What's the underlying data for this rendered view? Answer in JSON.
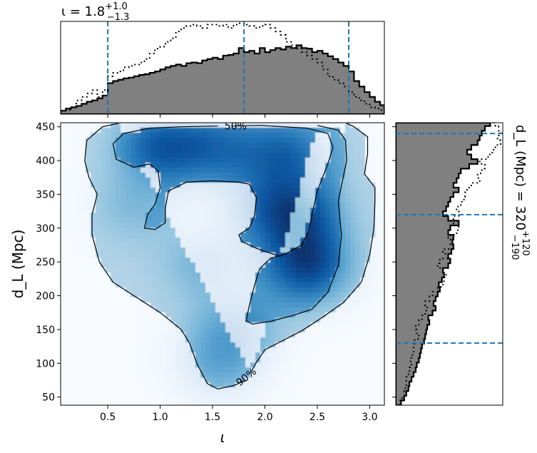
{
  "chart_data": [
    {
      "type": "heatmap",
      "panel": "joint",
      "xlabel": "ι",
      "ylabel": "d_L (Mpc)",
      "xlim": [
        0.05,
        3.14
      ],
      "ylim": [
        38,
        456
      ],
      "x_ticks": [
        "0.5",
        "1.0",
        "1.5",
        "2.0",
        "2.5",
        "3.0"
      ],
      "x_tick_values": [
        0.5,
        1.0,
        1.5,
        2.0,
        2.5,
        3.0
      ],
      "y_ticks": [
        "50",
        "100",
        "150",
        "200",
        "250",
        "300",
        "350",
        "400",
        "450"
      ],
      "y_tick_values": [
        50,
        100,
        150,
        200,
        250,
        300,
        350,
        400,
        450
      ],
      "colormap": "Blues",
      "density_peaks": [
        {
          "x": 2.4,
          "y": 245,
          "w": 1.0
        },
        {
          "x": 2.35,
          "y": 320,
          "w": 0.75
        },
        {
          "x": 1.0,
          "y": 420,
          "w": 0.8
        },
        {
          "x": 1.55,
          "y": 420,
          "w": 0.6
        },
        {
          "x": 2.2,
          "y": 410,
          "w": 0.7
        },
        {
          "x": 1.4,
          "y": 245,
          "w": 0.35
        },
        {
          "x": 1.7,
          "y": 150,
          "w": 0.45
        },
        {
          "x": 1.55,
          "y": 95,
          "w": 0.4
        },
        {
          "x": 2.0,
          "y": 330,
          "w": 0.45
        },
        {
          "x": 0.75,
          "y": 330,
          "w": 0.3
        }
      ],
      "contours": [
        {
          "label": "50%",
          "label_at": [
            1.72,
            451
          ],
          "points": [
            [
              1.68,
              451
            ],
            [
              1.95,
              452
            ],
            [
              2.4,
              448
            ],
            [
              2.6,
              440
            ],
            [
              2.65,
              420
            ],
            [
              2.6,
              395
            ],
            [
              2.55,
              375
            ],
            [
              2.5,
              355
            ],
            [
              2.45,
              320
            ],
            [
              2.42,
              295
            ],
            [
              2.35,
              275
            ],
            [
              2.2,
              262
            ],
            [
              2.05,
              255
            ],
            [
              1.95,
              240
            ],
            [
              1.9,
              215
            ],
            [
              1.85,
              185
            ],
            [
              1.82,
              163
            ],
            [
              1.88,
              158
            ],
            [
              2.05,
              162
            ],
            [
              2.25,
              170
            ],
            [
              2.45,
              180
            ],
            [
              2.6,
              205
            ],
            [
              2.7,
              245
            ],
            [
              2.73,
              290
            ],
            [
              2.7,
              340
            ],
            [
              2.78,
              400
            ],
            [
              2.77,
              430
            ],
            [
              2.7,
              445
            ],
            [
              2.5,
              452
            ]
          ]
        },
        {
          "label": "50%",
          "points": [
            [
              1.55,
              451
            ],
            [
              1.2,
              450
            ],
            [
              0.9,
              448
            ],
            [
              0.65,
              440
            ],
            [
              0.55,
              425
            ],
            [
              0.58,
              402
            ],
            [
              0.75,
              390
            ],
            [
              0.9,
              395
            ],
            [
              0.98,
              385
            ],
            [
              1.0,
              360
            ],
            [
              0.95,
              335
            ],
            [
              0.88,
              320
            ],
            [
              0.85,
              300
            ],
            [
              0.95,
              298
            ],
            [
              1.05,
              308
            ],
            [
              1.05,
              330
            ],
            [
              1.08,
              355
            ],
            [
              1.25,
              368
            ],
            [
              1.5,
              370
            ],
            [
              1.75,
              368
            ],
            [
              1.85,
              365
            ],
            [
              1.92,
              345
            ],
            [
              1.9,
              318
            ],
            [
              1.85,
              300
            ],
            [
              1.75,
              290
            ],
            [
              1.78,
              280
            ],
            [
              1.92,
              270
            ],
            [
              2.05,
              263
            ],
            [
              2.15,
              258
            ]
          ]
        },
        {
          "label": "90%",
          "label_at": [
            1.82,
            80
          ],
          "points": [
            [
              1.82,
              75
            ],
            [
              1.7,
              67
            ],
            [
              1.55,
              62
            ],
            [
              1.45,
              70
            ],
            [
              1.35,
              100
            ],
            [
              1.28,
              130
            ],
            [
              1.2,
              150
            ],
            [
              1.0,
              175
            ],
            [
              0.75,
              200
            ],
            [
              0.55,
              220
            ],
            [
              0.42,
              250
            ],
            [
              0.35,
              290
            ],
            [
              0.35,
              320
            ],
            [
              0.4,
              350
            ],
            [
              0.32,
              375
            ],
            [
              0.28,
              400
            ],
            [
              0.3,
              430
            ],
            [
              0.45,
              450
            ],
            [
              0.6,
              455
            ]
          ]
        },
        {
          "label": "90%",
          "points": [
            [
              2.78,
              455
            ],
            [
              2.85,
              450
            ],
            [
              2.98,
              435
            ],
            [
              2.98,
              410
            ],
            [
              2.95,
              380
            ],
            [
              3.05,
              360
            ],
            [
              3.05,
              340
            ],
            [
              3.04,
              300
            ],
            [
              3.0,
              260
            ],
            [
              2.92,
              220
            ],
            [
              2.75,
              190
            ],
            [
              2.55,
              168
            ],
            [
              2.35,
              148
            ],
            [
              2.15,
              132
            ],
            [
              2.0,
              120
            ],
            [
              1.92,
              102
            ],
            [
              1.86,
              85
            ]
          ]
        }
      ]
    },
    {
      "type": "bar",
      "panel": "top-marginal",
      "title": "ι = 1.8",
      "title_sup": "+1.0",
      "title_sub": "−1.3",
      "xlim": [
        0.05,
        3.14
      ],
      "bin_edges": [
        0.05,
        0.1,
        0.15,
        0.2,
        0.25,
        0.3,
        0.35,
        0.4,
        0.45,
        0.5,
        0.55,
        0.6,
        0.65,
        0.7,
        0.75,
        0.8,
        0.85,
        0.9,
        0.95,
        1.0,
        1.05,
        1.1,
        1.15,
        1.2,
        1.25,
        1.3,
        1.35,
        1.4,
        1.45,
        1.5,
        1.55,
        1.6,
        1.65,
        1.7,
        1.75,
        1.8,
        1.85,
        1.9,
        1.95,
        2.0,
        2.05,
        2.1,
        2.15,
        2.2,
        2.25,
        2.3,
        2.35,
        2.4,
        2.45,
        2.5,
        2.55,
        2.6,
        2.65,
        2.7,
        2.75,
        2.8,
        2.85,
        2.9,
        2.95,
        3.0,
        3.05,
        3.1,
        3.14
      ],
      "series": [
        {
          "style": "filled",
          "values": [
            0.05,
            0.08,
            0.1,
            0.12,
            0.15,
            0.18,
            0.2,
            0.23,
            0.27,
            0.45,
            0.48,
            0.5,
            0.52,
            0.53,
            0.55,
            0.57,
            0.58,
            0.6,
            0.62,
            0.65,
            0.68,
            0.7,
            0.72,
            0.7,
            0.74,
            0.75,
            0.74,
            0.78,
            0.8,
            0.82,
            0.8,
            0.85,
            0.86,
            0.88,
            0.96,
            0.9,
            0.92,
            0.88,
            0.96,
            0.9,
            0.93,
            0.96,
            0.94,
            0.98,
            0.96,
            1.0,
            0.96,
            0.95,
            0.9,
            0.92,
            0.88,
            0.84,
            0.8,
            0.75,
            0.7,
            0.62,
            0.48,
            0.4,
            0.32,
            0.25,
            0.18,
            0.13
          ]
        },
        {
          "style": "dotted",
          "values": [
            0.05,
            0.06,
            0.1,
            0.2,
            0.25,
            0.3,
            0.35,
            0.25,
            0.35,
            0.55,
            0.6,
            0.62,
            0.68,
            0.7,
            0.72,
            0.75,
            0.8,
            0.88,
            0.95,
            0.98,
            1.05,
            1.1,
            1.2,
            1.25,
            1.28,
            1.3,
            1.28,
            1.25,
            1.3,
            1.3,
            1.28,
            1.3,
            1.25,
            1.3,
            1.32,
            1.3,
            1.28,
            1.25,
            1.28,
            1.3,
            1.25,
            1.2,
            1.15,
            1.05,
            1.0,
            0.95,
            0.9,
            0.85,
            0.8,
            0.75,
            0.65,
            0.55,
            0.5,
            0.45,
            0.4,
            0.32,
            0.25,
            0.2,
            0.15,
            0.1,
            0.08,
            0.06
          ]
        }
      ],
      "vlines": [
        0.5,
        1.8,
        2.8
      ]
    },
    {
      "type": "bar",
      "panel": "right-marginal",
      "orientation": "horizontal",
      "title": "d_L (Mpc) = 320",
      "title_sup": "+120",
      "title_sub": "−190",
      "ylim": [
        38,
        456
      ],
      "bin_edges": [
        38,
        45,
        52,
        59,
        66,
        73,
        80,
        87,
        94,
        101,
        108,
        115,
        122,
        129,
        136,
        143,
        150,
        157,
        164,
        171,
        178,
        185,
        192,
        199,
        206,
        213,
        220,
        227,
        234,
        241,
        248,
        255,
        262,
        269,
        276,
        283,
        290,
        297,
        304,
        311,
        318,
        325,
        332,
        339,
        346,
        353,
        360,
        367,
        374,
        381,
        388,
        395,
        402,
        409,
        416,
        423,
        430,
        437,
        444,
        451,
        456
      ],
      "series": [
        {
          "style": "filled",
          "values": [
            0.05,
            0.08,
            0.1,
            0.12,
            0.13,
            0.15,
            0.17,
            0.19,
            0.2,
            0.22,
            0.23,
            0.24,
            0.25,
            0.27,
            0.28,
            0.29,
            0.3,
            0.32,
            0.31,
            0.35,
            0.38,
            0.36,
            0.38,
            0.4,
            0.42,
            0.41,
            0.44,
            0.46,
            0.45,
            0.5,
            0.52,
            0.5,
            0.53,
            0.55,
            0.54,
            0.55,
            0.5,
            0.52,
            0.6,
            0.5,
            0.45,
            0.48,
            0.5,
            0.52,
            0.55,
            0.6,
            0.55,
            0.58,
            0.6,
            0.62,
            0.7,
            0.78,
            0.72,
            0.68,
            0.72,
            0.78,
            0.8,
            0.82,
            0.85,
            0.9
          ]
        },
        {
          "style": "dotted",
          "values": [
            0.04,
            0.06,
            0.08,
            0.09,
            0.1,
            0.1,
            0.12,
            0.13,
            0.15,
            0.14,
            0.16,
            0.17,
            0.17,
            0.18,
            0.22,
            0.2,
            0.19,
            0.22,
            0.25,
            0.28,
            0.3,
            0.28,
            0.32,
            0.35,
            0.4,
            0.45,
            0.46,
            0.48,
            0.45,
            0.4,
            0.42,
            0.5,
            0.45,
            0.55,
            0.52,
            0.5,
            0.58,
            0.6,
            0.55,
            0.55,
            0.6,
            0.58,
            0.62,
            0.65,
            0.66,
            0.68,
            0.72,
            0.8,
            0.78,
            0.82,
            0.85,
            0.8,
            0.88,
            0.92,
            0.95,
            1.0,
            0.97,
            1.0,
            0.98,
            0.95
          ]
        }
      ],
      "hlines": [
        130,
        320,
        440
      ]
    }
  ]
}
